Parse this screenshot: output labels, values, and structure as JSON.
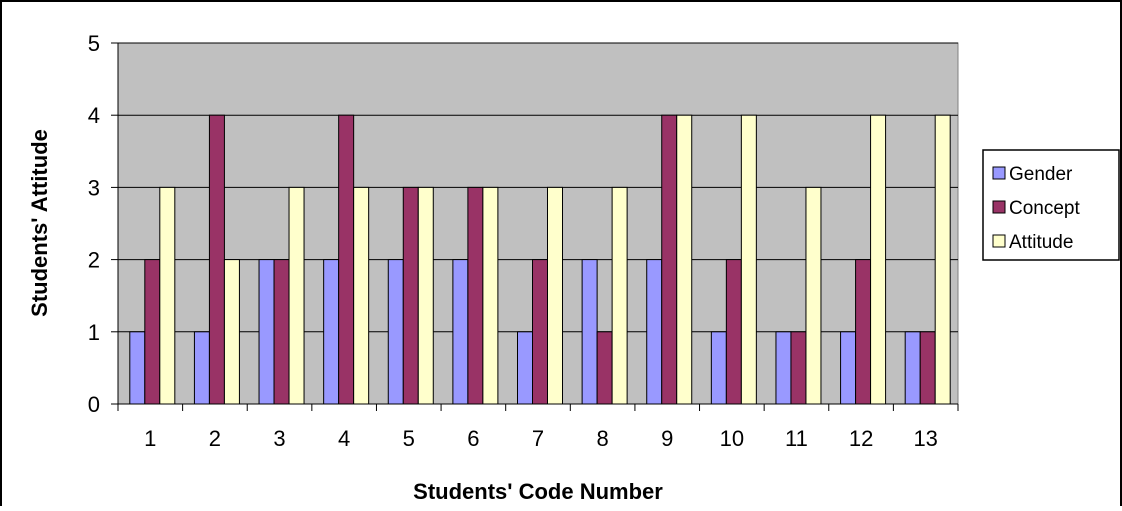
{
  "chart_data": {
    "type": "bar",
    "title": "",
    "xlabel": "Students' Code Number",
    "ylabel": "Students' Attitude",
    "categories": [
      "1",
      "2",
      "3",
      "4",
      "5",
      "6",
      "7",
      "8",
      "9",
      "10",
      "11",
      "12",
      "13"
    ],
    "ylim": [
      0,
      5
    ],
    "yticks": [
      "0",
      "1",
      "2",
      "3",
      "4",
      "5"
    ],
    "grid": true,
    "legend_position": "right",
    "series": [
      {
        "name": "Gender",
        "color": "#9999ff",
        "values": [
          1,
          1,
          2,
          2,
          2,
          2,
          1,
          2,
          2,
          1,
          1,
          1,
          1
        ]
      },
      {
        "name": "Concept",
        "color": "#993366",
        "values": [
          2,
          4,
          2,
          4,
          3,
          3,
          2,
          1,
          4,
          2,
          1,
          2,
          1
        ]
      },
      {
        "name": "Attitude",
        "color": "#ffffcc",
        "values": [
          3,
          2,
          3,
          3,
          3,
          3,
          3,
          3,
          4,
          4,
          3,
          4,
          4
        ]
      }
    ],
    "plot_background": "#c0c0c0"
  }
}
